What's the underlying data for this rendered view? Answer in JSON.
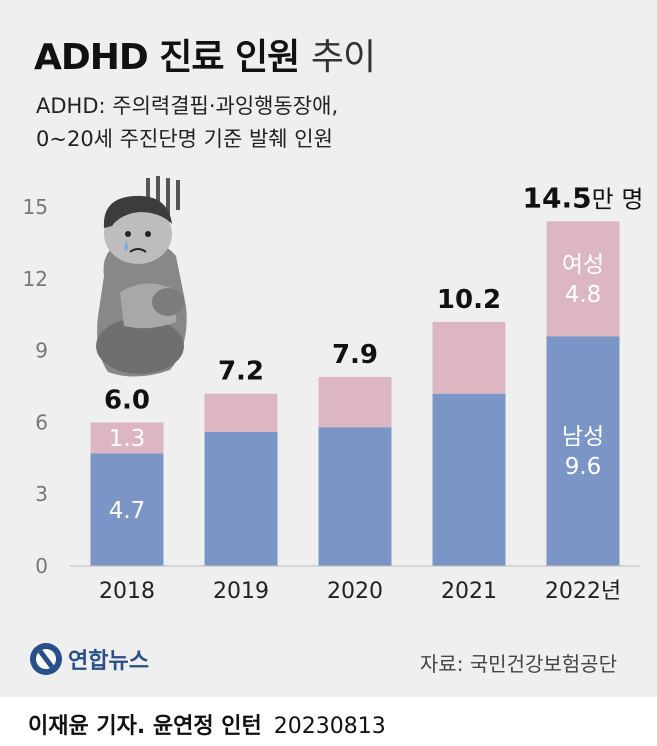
{
  "header": {
    "title_bold": "ADHD 진료 인원",
    "title_light": "추이",
    "subtitle_line1": "ADHD: 주의력결핍·과잉행동장애,",
    "subtitle_line2": "0~20세 주진단명 기준 발췌 인원"
  },
  "chart_data": {
    "type": "bar",
    "stacked": true,
    "categories": [
      "2018",
      "2019",
      "2020",
      "2021",
      "2022년"
    ],
    "series": [
      {
        "name": "남성",
        "values": [
          4.7,
          5.6,
          5.8,
          7.2,
          9.6
        ],
        "color": "#7a95c6"
      },
      {
        "name": "여성",
        "values": [
          1.3,
          1.6,
          2.1,
          3.0,
          4.8
        ],
        "color": "#dcb7c2"
      }
    ],
    "totals": [
      "6.0",
      "7.2",
      "7.9",
      "10.2",
      "14.5"
    ],
    "total_unit_last": "만 명",
    "segment_labels": [
      {
        "category": 0,
        "series": 0,
        "text": "4.7"
      },
      {
        "category": 0,
        "series": 1,
        "text": "1.3"
      },
      {
        "category": 4,
        "series": 0,
        "text": "남성"
      },
      {
        "category": 4,
        "series": 0,
        "text": "9.6"
      },
      {
        "category": 4,
        "series": 1,
        "text": "여성"
      },
      {
        "category": 4,
        "series": 1,
        "text": "4.8"
      }
    ],
    "ylim": [
      0,
      15
    ],
    "yticks": [
      "0",
      "3",
      "6",
      "9",
      "12",
      "15"
    ],
    "grid": false
  },
  "footer": {
    "logo_text": "연합뉴스",
    "source": "자료: 국민건강보험공단",
    "credit": "이재윤 기자. 윤연정 인턴",
    "date": "20230813"
  },
  "illustration": "worried-child-hugging-knees",
  "colors": {
    "male": "#7a95c6",
    "female": "#dcb7c2",
    "background": "#efefef",
    "brand": "#2a4e8a"
  }
}
